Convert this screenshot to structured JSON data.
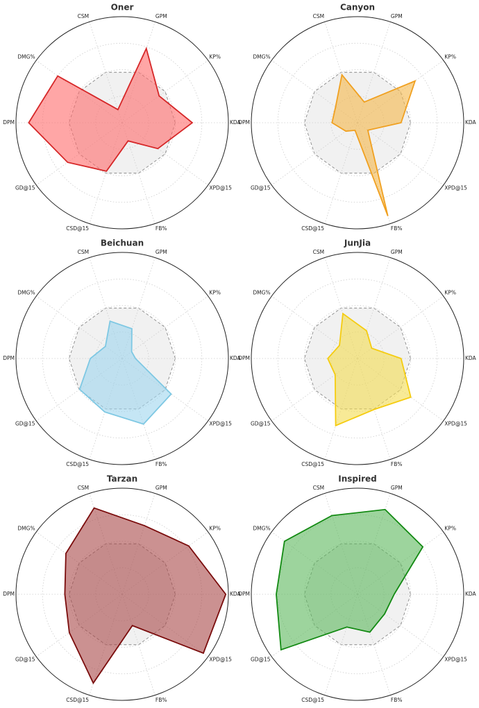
{
  "chart_data": [
    {
      "type": "radar",
      "title": "Oner",
      "categories": [
        "KDA",
        "KP%",
        "GPM",
        "CSM",
        "DMG%",
        "DPM",
        "GD@15",
        "CSD@15",
        "FB%",
        "XPD@15"
      ],
      "values": [
        1.32,
        0.86,
        1.47,
        0.26,
        1.5,
        1.76,
        1.27,
        0.96,
        0.36,
        0.83
      ],
      "color": "#d62728",
      "fill": "#ff6b6b",
      "ylim": [
        0,
        2
      ],
      "yticks": [
        0.5,
        1,
        1.5
      ],
      "reference": 1
    },
    {
      "type": "radar",
      "title": "Canyon",
      "categories": [
        "KDA",
        "KP%",
        "GPM",
        "CSM",
        "DMG%",
        "DPM",
        "GD@15",
        "CSD@15",
        "FB%",
        "XPD@15"
      ],
      "values": [
        0.82,
        1.34,
        0.41,
        0.95,
        0.51,
        0.48,
        0.27,
        0.15,
        1.85,
        0.24
      ],
      "color": "#f0a020",
      "fill": "#f5b84a",
      "ylim": [
        0,
        2
      ],
      "yticks": [
        0.5,
        1,
        1.5
      ],
      "reference": 1
    },
    {
      "type": "radar",
      "title": "Beichuan",
      "categories": [
        "KDA",
        "KP%",
        "GPM",
        "CSM",
        "DMG%",
        "DPM",
        "GD@15",
        "CSD@15",
        "FB%",
        "XPD@15"
      ],
      "values": [
        0.25,
        0.22,
        0.59,
        0.74,
        0.39,
        0.6,
        0.99,
        1.06,
        1.3,
        1.14
      ],
      "color": "#7ec8e3",
      "fill": "#9fd6ee",
      "ylim": [
        0,
        2
      ],
      "yticks": [
        0.5,
        1,
        1.5
      ],
      "reference": 1
    },
    {
      "type": "radar",
      "title": "JunJia",
      "categories": [
        "KDA",
        "KP%",
        "GPM",
        "CSM",
        "DMG%",
        "DPM",
        "GD@15",
        "CSD@15",
        "FB%",
        "XPD@15"
      ],
      "values": [
        0.82,
        0.33,
        0.55,
        0.89,
        0.42,
        0.56,
        0.52,
        1.33,
        1.01,
        1.24
      ],
      "color": "#f5cc10",
      "fill": "#f3dc50",
      "ylim": [
        0,
        2
      ],
      "yticks": [
        0.5,
        1,
        1.5
      ],
      "reference": 1
    },
    {
      "type": "radar",
      "title": "Tarzan",
      "categories": [
        "KDA",
        "KP%",
        "GPM",
        "CSM",
        "DMG%",
        "DPM",
        "GD@15",
        "CSD@15",
        "FB%",
        "XPD@15"
      ],
      "values": [
        1.95,
        1.55,
        1.36,
        1.71,
        1.31,
        1.08,
        1.23,
        1.76,
        0.62,
        1.89
      ],
      "color": "#7a0c0c",
      "fill": "#a84848",
      "ylim": [
        0,
        2
      ],
      "yticks": [
        0.5,
        1,
        1.5
      ],
      "reference": 1
    },
    {
      "type": "radar",
      "title": "Inspired",
      "categories": [
        "KDA",
        "KP%",
        "GPM",
        "CSM",
        "DMG%",
        "DPM",
        "GD@15",
        "CSD@15",
        "FB%",
        "XPD@15"
      ],
      "values": [
        0.69,
        1.52,
        1.68,
        1.56,
        1.7,
        1.53,
        1.78,
        0.65,
        0.75,
        0.63
      ],
      "color": "#138a13",
      "fill": "#5cb85c",
      "ylim": [
        0,
        2
      ],
      "yticks": [
        0.5,
        1,
        1.5
      ],
      "reference": 1
    }
  ]
}
